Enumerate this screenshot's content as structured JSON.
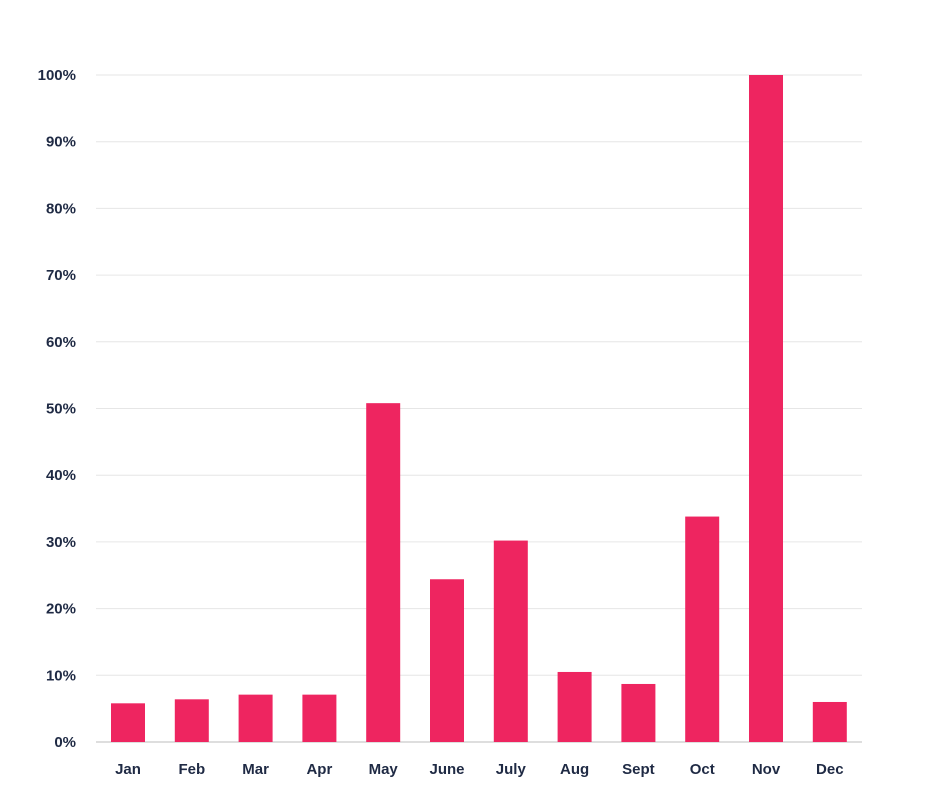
{
  "chart_data": {
    "type": "bar",
    "title": "",
    "xlabel": "",
    "ylabel": "",
    "categories": [
      "Jan",
      "Feb",
      "Mar",
      "Apr",
      "May",
      "June",
      "July",
      "Aug",
      "Sept",
      "Oct",
      "Nov",
      "Dec"
    ],
    "values": [
      5.8,
      6.4,
      7.1,
      7.1,
      50.8,
      24.4,
      30.2,
      10.5,
      8.7,
      33.8,
      100,
      6.0
    ],
    "ylim": [
      0,
      100
    ],
    "yticks": [
      0,
      10,
      20,
      30,
      40,
      50,
      60,
      70,
      80,
      90,
      100
    ],
    "ytick_labels": [
      "0%",
      "10%",
      "20%",
      "30%",
      "40%",
      "50%",
      "60%",
      "70%",
      "80%",
      "90%",
      "100%"
    ],
    "grid": true,
    "legend": "none",
    "bar_color": "#EE2560",
    "grid_color": "#e6e6e6",
    "text_color": "#1f2a44"
  }
}
